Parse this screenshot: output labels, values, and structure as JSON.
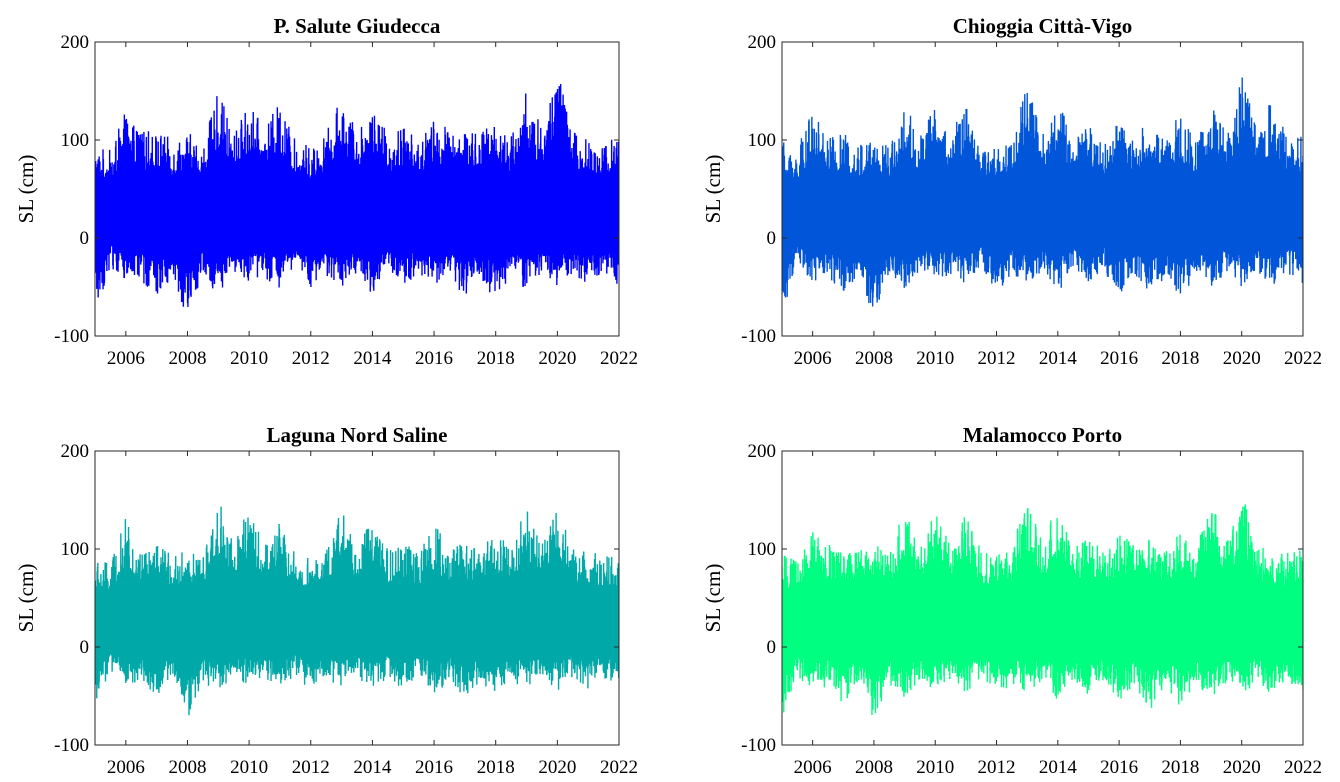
{
  "chart_data": [
    {
      "type": "line",
      "title": "P. Salute Giudecca",
      "xlabel": "",
      "ylabel": "SL (cm)",
      "xlim": [
        2005.0,
        2022.0
      ],
      "ylim": [
        -100,
        200
      ],
      "xticks": [
        "2006",
        "2008",
        "2010",
        "2012",
        "2014",
        "2016",
        "2018",
        "2020",
        "2022"
      ],
      "yticks": [
        "-100",
        "0",
        "100",
        "200"
      ],
      "color": "#0000ff",
      "series": [
        {
          "x": [
            2005.0,
            2005.5,
            2006.0,
            2006.5,
            2007.0,
            2007.5,
            2008.0,
            2008.5,
            2009.0,
            2009.5,
            2010.0,
            2010.5,
            2011.0,
            2011.5,
            2012.0,
            2012.5,
            2013.0,
            2013.5,
            2014.0,
            2014.5,
            2015.0,
            2015.5,
            2016.0,
            2016.5,
            2017.0,
            2017.5,
            2018.0,
            2018.5,
            2019.0,
            2019.5,
            2020.0,
            2020.5,
            2021.0,
            2021.5,
            2022.0
          ],
          "max": [
            95,
            90,
            130,
            110,
            112,
            100,
            110,
            95,
            150,
            108,
            140,
            110,
            142,
            100,
            95,
            108,
            146,
            110,
            142,
            105,
            118,
            100,
            122,
            112,
            118,
            108,
            125,
            104,
            153,
            112,
            182,
            110,
            104,
            100,
            105
          ],
          "min": [
            -78,
            -30,
            -48,
            -45,
            -60,
            -40,
            -82,
            -40,
            -58,
            -35,
            -45,
            -40,
            -55,
            -30,
            -55,
            -40,
            -50,
            -35,
            -58,
            -38,
            -52,
            -36,
            -55,
            -40,
            -62,
            -42,
            -65,
            -40,
            -55,
            -38,
            -52,
            -35,
            -52,
            -38,
            -48
          ]
        }
      ]
    },
    {
      "type": "line",
      "title": "Chioggia Città-Vigo",
      "xlabel": "",
      "ylabel": "SL (cm)",
      "xlim": [
        2005.0,
        2022.0
      ],
      "ylim": [
        -100,
        200
      ],
      "xticks": [
        "2006",
        "2008",
        "2010",
        "2012",
        "2014",
        "2016",
        "2018",
        "2020",
        "2022"
      ],
      "yticks": [
        "-100",
        "0",
        "100",
        "200"
      ],
      "color": "#0055d9",
      "series": [
        {
          "x": [
            2005.0,
            2005.5,
            2006.0,
            2006.5,
            2007.0,
            2007.5,
            2008.0,
            2008.5,
            2009.0,
            2009.5,
            2010.0,
            2010.5,
            2011.0,
            2011.5,
            2012.0,
            2012.5,
            2013.0,
            2013.5,
            2014.0,
            2014.5,
            2015.0,
            2015.5,
            2016.0,
            2016.5,
            2017.0,
            2017.5,
            2018.0,
            2018.5,
            2019.0,
            2019.5,
            2020.0,
            2020.5,
            2021.0,
            2021.5,
            2022.0
          ],
          "max": [
            100,
            92,
            130,
            105,
            108,
            98,
            110,
            95,
            136,
            108,
            140,
            108,
            135,
            98,
            95,
            105,
            162,
            110,
            146,
            102,
            118,
            98,
            120,
            108,
            118,
            105,
            128,
            102,
            140,
            110,
            170,
            108,
            145,
            100,
            105
          ],
          "min": [
            -76,
            -30,
            -45,
            -40,
            -58,
            -38,
            -82,
            -38,
            -55,
            -34,
            -45,
            -38,
            -52,
            -30,
            -56,
            -38,
            -48,
            -34,
            -55,
            -36,
            -50,
            -34,
            -58,
            -38,
            -60,
            -40,
            -62,
            -38,
            -52,
            -36,
            -50,
            -34,
            -50,
            -36,
            -48
          ]
        }
      ]
    },
    {
      "type": "line",
      "title": "Laguna Nord Saline",
      "xlabel": "",
      "ylabel": "SL (cm)",
      "xlim": [
        2005.0,
        2022.0
      ],
      "ylim": [
        -100,
        200
      ],
      "xticks": [
        "2006",
        "2008",
        "2010",
        "2012",
        "2014",
        "2016",
        "2018",
        "2020",
        "2022"
      ],
      "yticks": [
        "-100",
        "0",
        "100",
        "200"
      ],
      "color": "#00a8a8",
      "series": [
        {
          "x": [
            2005.0,
            2005.5,
            2006.0,
            2006.5,
            2007.0,
            2007.5,
            2008.0,
            2008.5,
            2009.0,
            2009.5,
            2010.0,
            2010.5,
            2011.0,
            2011.5,
            2012.0,
            2012.5,
            2013.0,
            2013.5,
            2014.0,
            2014.5,
            2015.0,
            2015.5,
            2016.0,
            2016.5,
            2017.0,
            2017.5,
            2018.0,
            2018.5,
            2019.0,
            2019.5,
            2020.0,
            2020.5,
            2021.0,
            2021.5,
            2022.0
          ],
          "max": [
            90,
            85,
            132,
            100,
            105,
            95,
            100,
            92,
            155,
            105,
            145,
            105,
            130,
            95,
            90,
            100,
            140,
            105,
            138,
            100,
            112,
            95,
            125,
            105,
            110,
            100,
            118,
            100,
            145,
            105,
            148,
            105,
            98,
            95,
            98
          ],
          "min": [
            -65,
            -25,
            -40,
            -35,
            -50,
            -32,
            -75,
            -35,
            -48,
            -30,
            -40,
            -34,
            -45,
            -28,
            -46,
            -35,
            -42,
            -30,
            -48,
            -32,
            -44,
            -30,
            -50,
            -34,
            -52,
            -36,
            -50,
            -34,
            -45,
            -32,
            -45,
            -30,
            -44,
            -32,
            -38
          ]
        }
      ]
    },
    {
      "type": "line",
      "title": "Malamocco Porto",
      "xlabel": "",
      "ylabel": "SL (cm)",
      "xlim": [
        2005.0,
        2022.0
      ],
      "ylim": [
        -100,
        200
      ],
      "xticks": [
        "2006",
        "2008",
        "2010",
        "2012",
        "2014",
        "2016",
        "2018",
        "2020",
        "2022"
      ],
      "yticks": [
        "-100",
        "0",
        "100",
        "200"
      ],
      "color": "#00ff80",
      "series": [
        {
          "x": [
            2005.0,
            2005.5,
            2006.0,
            2006.5,
            2007.0,
            2007.5,
            2008.0,
            2008.5,
            2009.0,
            2009.5,
            2010.0,
            2010.5,
            2011.0,
            2011.5,
            2012.0,
            2012.5,
            2013.0,
            2013.5,
            2014.0,
            2014.5,
            2015.0,
            2015.5,
            2016.0,
            2016.5,
            2017.0,
            2017.5,
            2018.0,
            2018.5,
            2019.0,
            2019.5,
            2020.0,
            2020.5,
            2021.0,
            2021.5,
            2022.0
          ],
          "max": [
            95,
            90,
            118,
            105,
            105,
            98,
            108,
            95,
            142,
            105,
            142,
            105,
            138,
            98,
            95,
            105,
            150,
            108,
            148,
            102,
            115,
            98,
            118,
            105,
            112,
            100,
            120,
            100,
            148,
            108,
            160,
            105,
            102,
            98,
            102
          ],
          "min": [
            -74,
            -30,
            -45,
            -40,
            -58,
            -38,
            -76,
            -38,
            -55,
            -34,
            -45,
            -38,
            -50,
            -30,
            -50,
            -38,
            -48,
            -34,
            -55,
            -36,
            -50,
            -34,
            -55,
            -38,
            -68,
            -40,
            -62,
            -38,
            -52,
            -36,
            -52,
            -34,
            -50,
            -36,
            -46
          ]
        }
      ]
    }
  ]
}
